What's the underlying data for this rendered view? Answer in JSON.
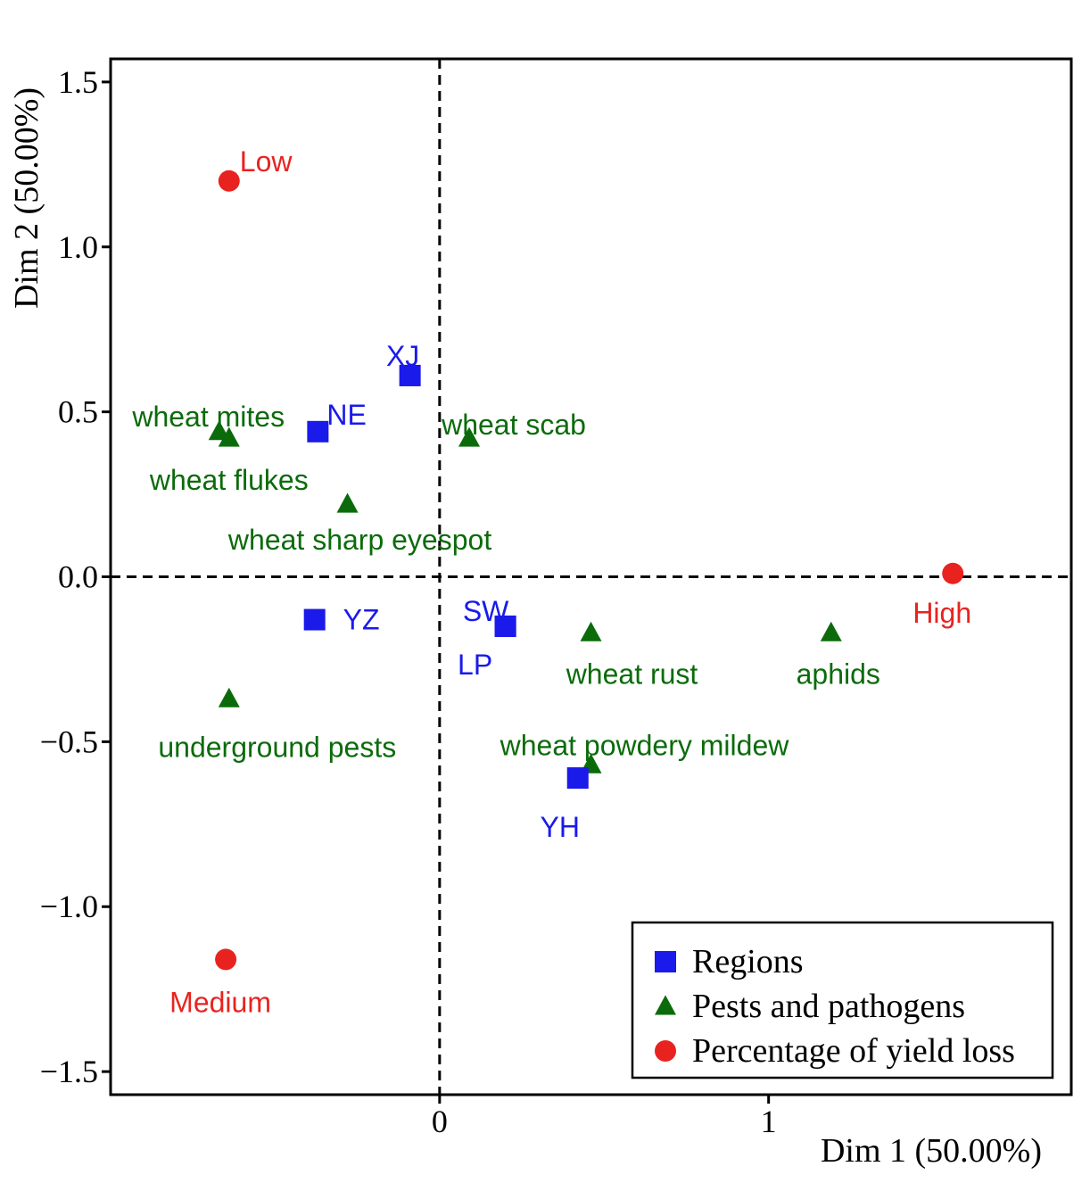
{
  "chart_data": {
    "type": "scatter",
    "xlabel": "Dim 1 (50.00%)",
    "ylabel": "Dim 2 (50.00%)",
    "xlim": [
      -1.0,
      1.92
    ],
    "ylim": [
      -1.57,
      1.57
    ],
    "x_ticks": [
      {
        "value": 0,
        "label": "0"
      },
      {
        "value": 1,
        "label": "1"
      }
    ],
    "y_ticks": [
      {
        "value": 1.5,
        "label": "1.5"
      },
      {
        "value": 1.0,
        "label": "1.0"
      },
      {
        "value": 0.5,
        "label": "0.5"
      },
      {
        "value": 0.0,
        "label": "0.0"
      },
      {
        "value": -0.5,
        "label": "−0.5"
      },
      {
        "value": -1.0,
        "label": "−1.0"
      },
      {
        "value": -1.5,
        "label": "−1.5"
      }
    ],
    "reference_lines": {
      "x": 0,
      "y": 0,
      "style": "dashed"
    },
    "grid": false,
    "legend_position": "bottom-right",
    "series": [
      {
        "name": "Regions",
        "marker": "square",
        "color": "#1a1aeb",
        "points": [
          {
            "label": "XJ",
            "x": -0.09,
            "y": 0.61
          },
          {
            "label": "NE",
            "x": -0.37,
            "y": 0.44
          },
          {
            "label": "YZ",
            "x": -0.38,
            "y": -0.13
          },
          {
            "label": "SW",
            "x": 0.2,
            "y": -0.15
          },
          {
            "label": "LP",
            "x": 0.2,
            "y": -0.15
          },
          {
            "label": "YH",
            "x": 0.42,
            "y": -0.61
          }
        ]
      },
      {
        "name": "Pests and pathogens",
        "marker": "triangle",
        "color": "#0b6b0b",
        "points": [
          {
            "label": "wheat mites",
            "x": -0.67,
            "y": 0.44
          },
          {
            "label": "wheat flukes",
            "x": -0.64,
            "y": 0.42
          },
          {
            "label": "wheat scab",
            "x": 0.09,
            "y": 0.42
          },
          {
            "label": "wheat sharp eyespot",
            "x": -0.28,
            "y": 0.22
          },
          {
            "label": "wheat rust",
            "x": 0.46,
            "y": -0.17
          },
          {
            "label": "aphids",
            "x": 1.19,
            "y": -0.17
          },
          {
            "label": "underground pests",
            "x": -0.64,
            "y": -0.37
          },
          {
            "label": "wheat powdery mildew",
            "x": 0.46,
            "y": -0.57
          }
        ]
      },
      {
        "name": "Percentage of yield loss",
        "marker": "circle",
        "color": "#e8231f",
        "points": [
          {
            "label": "Low",
            "x": -0.64,
            "y": 1.2
          },
          {
            "label": "High",
            "x": 1.56,
            "y": 0.01
          },
          {
            "label": "Medium",
            "x": -0.65,
            "y": -1.16
          }
        ]
      }
    ]
  }
}
